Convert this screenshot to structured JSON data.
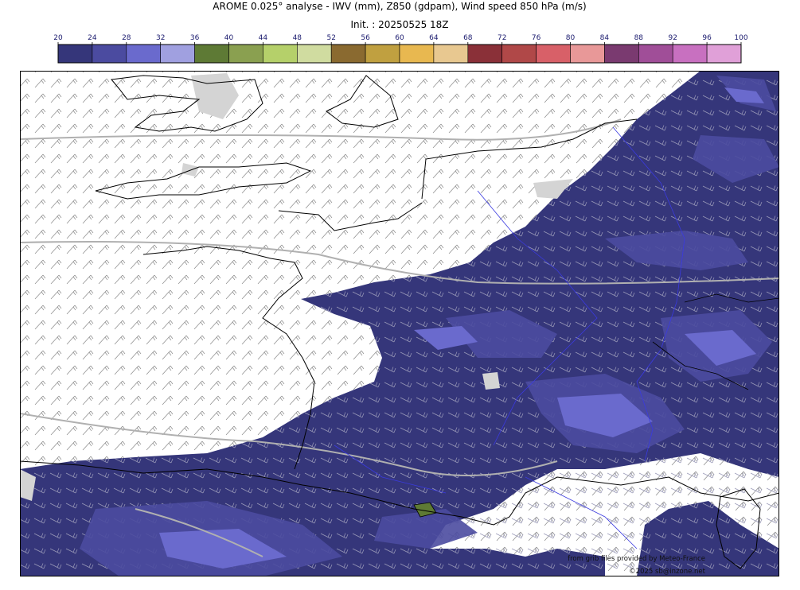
{
  "header": {
    "title": "AROME 0.025° analyse - IWV (mm), Z850 (gdpam), Wind speed 850 hPa (m/s)",
    "init": "Init. : 20250525 18Z"
  },
  "colorbar": {
    "ticks": [
      20,
      24,
      28,
      32,
      36,
      40,
      44,
      48,
      52,
      56,
      60,
      64,
      68,
      72,
      76,
      80,
      84,
      88,
      92,
      96,
      100
    ],
    "colors": [
      "#35367a",
      "#4b4ba0",
      "#6a6acd",
      "#a0a0e0",
      "#5e7a35",
      "#8aa050",
      "#b5d06a",
      "#d0dca0",
      "#8a6a30",
      "#c0a040",
      "#e8b850",
      "#e8c890",
      "#8a3038",
      "#b04848",
      "#d86068",
      "#e89898",
      "#7a3a70",
      "#a04e98",
      "#c870c0",
      "#e0a0d8"
    ]
  },
  "credits": {
    "source": "from grib files provided by Meteo-France",
    "copyright": "©2025 sb@inzone.net"
  }
}
